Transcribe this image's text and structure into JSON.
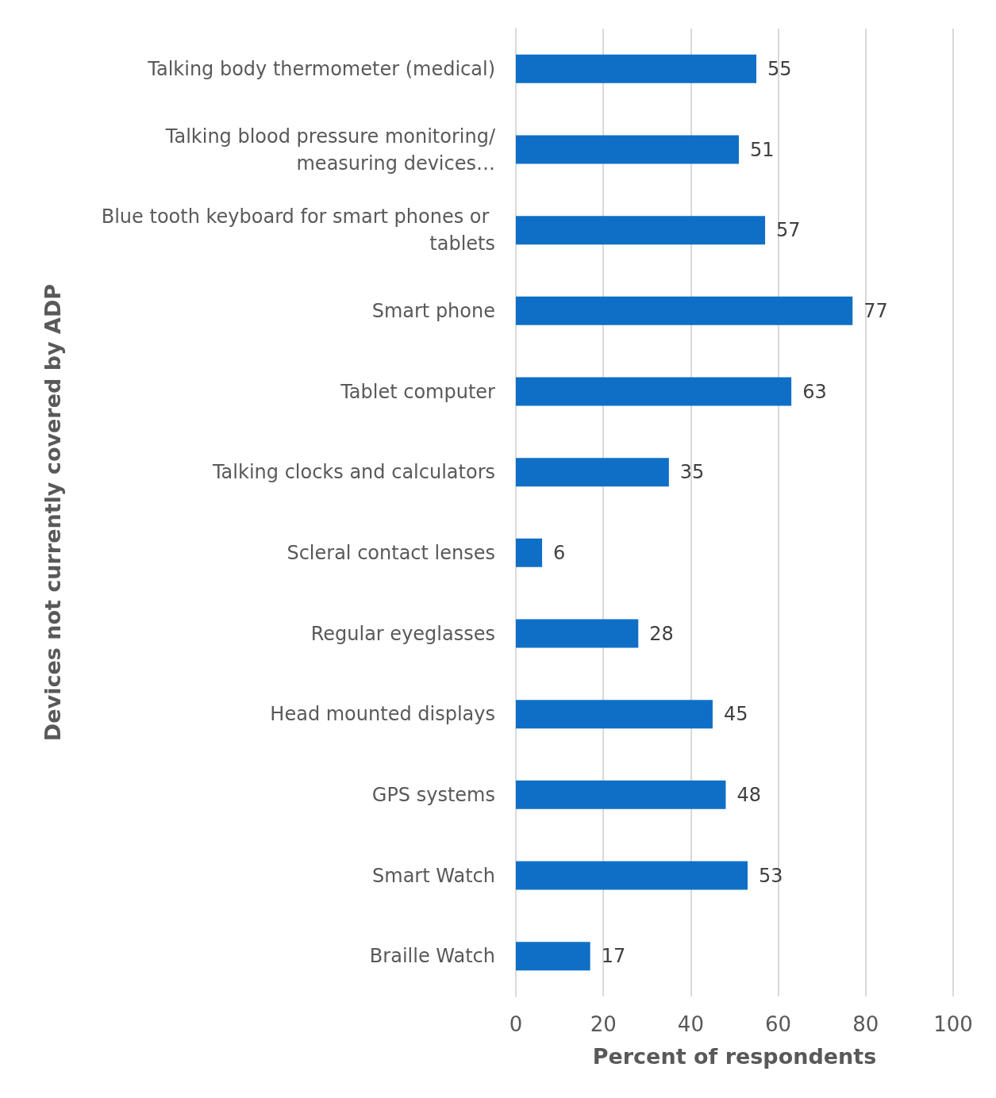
{
  "chart_data": {
    "type": "bar",
    "orientation": "horizontal",
    "xlabel": "Percent of respondents",
    "ylabel": "Devices not currently covered by ADP",
    "categories": [
      "Talking body thermometer (medical)",
      "Talking blood pressure monitoring/measuring devices…",
      "Blue tooth keyboard for smart phones or tablets",
      "Smart phone",
      "Tablet computer",
      "Talking clocks and calculators",
      "Scleral contact lenses",
      "Regular eyeglasses",
      "Head mounted displays",
      "GPS systems",
      "Smart Watch",
      "Braille Watch"
    ],
    "values": [
      55,
      51,
      57,
      77,
      63,
      35,
      6,
      28,
      45,
      48,
      53,
      17
    ],
    "color": "#0f6fc6",
    "xlim": [
      0,
      100
    ],
    "xticks": [
      0,
      20,
      40,
      60,
      80,
      100
    ],
    "grid": "x",
    "data_labels": true
  }
}
